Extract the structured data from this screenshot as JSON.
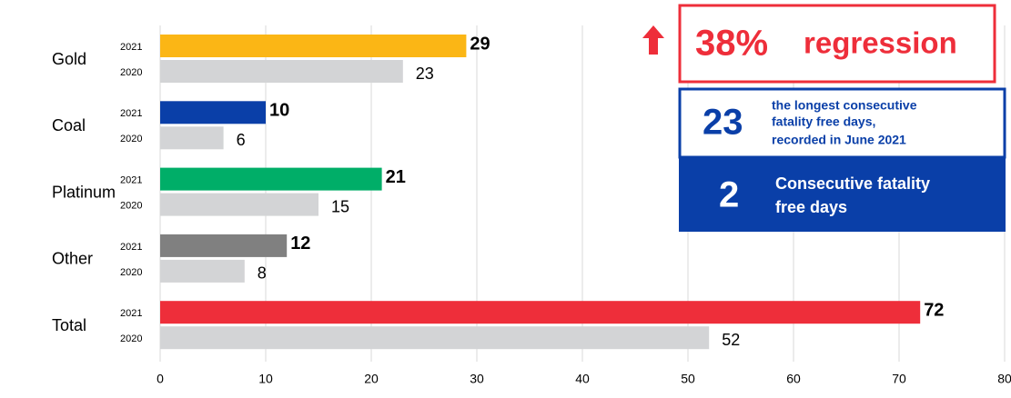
{
  "chart_data": {
    "type": "bar",
    "orientation": "horizontal",
    "categories": [
      "Gold",
      "Coal",
      "Platinum",
      "Other",
      "Total"
    ],
    "series": [
      {
        "name": "2021",
        "colors": [
          "#fbb615",
          "#0a3fa8",
          "#00ae68",
          "#808080",
          "#ee2e3a"
        ],
        "values": [
          29,
          10,
          21,
          12,
          72
        ]
      },
      {
        "name": "2020",
        "color": "#d3d4d6",
        "values": [
          23,
          6,
          15,
          8,
          52
        ]
      }
    ],
    "xlim": [
      0,
      80
    ],
    "xticks": [
      0,
      10,
      20,
      30,
      40,
      50,
      60,
      70,
      80
    ],
    "grid": true,
    "annotations": {
      "regression_value": "38%",
      "regression_text": "regression",
      "longest_value": "23",
      "longest_text": [
        "the longest consecutive",
        "fatality free days,",
        "recorded in June 2021"
      ],
      "current_value": "2",
      "current_text": [
        "Consecutive fatality",
        "free days"
      ]
    }
  }
}
